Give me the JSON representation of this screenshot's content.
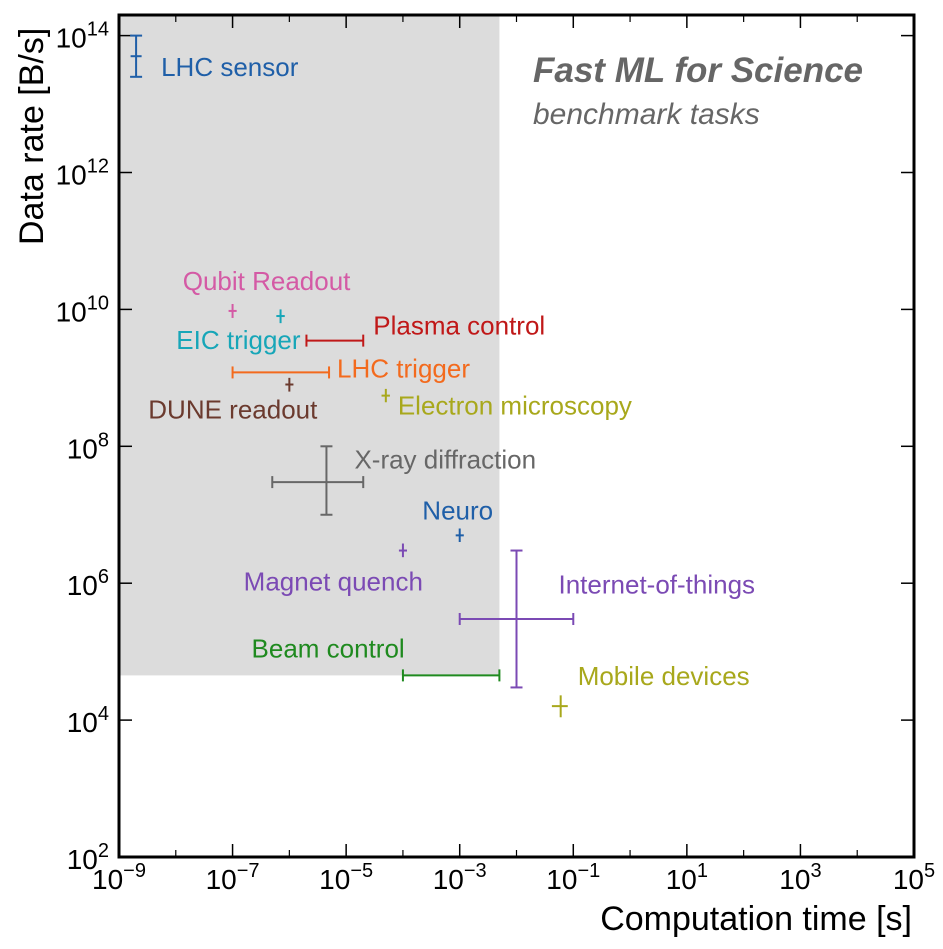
{
  "chart_data": {
    "type": "scatter",
    "title": "Fast ML for Science",
    "subtitle": "benchmark tasks",
    "xlabel": "Computation time [s]",
    "ylabel": "Data rate [B/s]",
    "xscale": "log",
    "yscale": "log",
    "xlim": [
      1e-09,
      100000.0
    ],
    "ylim": [
      100.0,
      200000000000000.0
    ],
    "grid": false,
    "x_ticks": [
      {
        "value": 1e-09,
        "base": "10",
        "exp": "−9"
      },
      {
        "value": 1e-07,
        "base": "10",
        "exp": "−7"
      },
      {
        "value": 1e-05,
        "base": "10",
        "exp": "−5"
      },
      {
        "value": 0.001,
        "base": "10",
        "exp": "−3"
      },
      {
        "value": 0.1,
        "base": "10",
        "exp": "−1"
      },
      {
        "value": 10.0,
        "base": "10",
        "exp": "1"
      },
      {
        "value": 1000.0,
        "base": "10",
        "exp": "3"
      },
      {
        "value": 100000.0,
        "base": "10",
        "exp": "5"
      }
    ],
    "y_ticks": [
      {
        "value": 100.0,
        "base": "10",
        "exp": "2"
      },
      {
        "value": 10000.0,
        "base": "10",
        "exp": "4"
      },
      {
        "value": 1000000.0,
        "base": "10",
        "exp": "6"
      },
      {
        "value": 100000000.0,
        "base": "10",
        "exp": "8"
      },
      {
        "value": 10000000000.0,
        "base": "10",
        "exp": "10"
      },
      {
        "value": 1000000000000.0,
        "base": "10",
        "exp": "12"
      },
      {
        "value": 100000000000000.0,
        "base": "10",
        "exp": "14"
      }
    ],
    "shaded_region": {
      "x": [
        1e-09,
        0.005
      ],
      "y": [
        45000.0,
        200000000000000.0
      ],
      "color": "#dcdcdc"
    },
    "points": [
      {
        "name": "LHC sensor",
        "x": 2e-09,
        "y": 50000000000000.0,
        "xerr": [
          1.6e-09,
          2.5e-09
        ],
        "yerr": [
          25000000000000.0,
          100000000000000.0
        ],
        "color": "#1f5fa8",
        "label_pos": "right"
      },
      {
        "name": "Qubit Readout",
        "x": 1e-07,
        "y": 9500000000.0,
        "xerr": [
          8.5e-08,
          1.18e-07
        ],
        "yerr": [
          7500000000.0,
          12000000000.0
        ],
        "color": "#d45aa5",
        "label_pos": "above"
      },
      {
        "name": "EIC trigger",
        "x": 7e-07,
        "y": 8000000000.0,
        "xerr": [
          5.9e-07,
          8.3e-07
        ],
        "yerr": [
          6300000000.0,
          10000000000.0
        ],
        "color": "#17a6b8",
        "label_pos": "below-left"
      },
      {
        "name": "Plasma control",
        "x": 6e-06,
        "y": 3500000000.0,
        "xerr": [
          2e-06,
          2e-05
        ],
        "yerr": [
          3500000000.0,
          3500000000.0
        ],
        "color": "#c01818",
        "label_pos": "right"
      },
      {
        "name": "LHC trigger",
        "x": 2e-06,
        "y": 1200000000.0,
        "xerr": [
          1e-07,
          5e-06
        ],
        "yerr": [
          1200000000.0,
          1200000000.0
        ],
        "color": "#f36a1d",
        "label_pos": "right"
      },
      {
        "name": "DUNE readout",
        "x": 1e-06,
        "y": 800000000.0,
        "xerr": [
          8.5e-07,
          1.18e-06
        ],
        "yerr": [
          630000000.0,
          1000000000.0
        ],
        "color": "#6b3a2e",
        "label_pos": "below-left"
      },
      {
        "name": "Electron microscopy",
        "x": 5e-05,
        "y": 550000000.0,
        "xerr": [
          4.2e-05,
          5.9e-05
        ],
        "yerr": [
          440000000.0,
          690000000.0
        ],
        "color": "#a8a81c",
        "label_pos": "right"
      },
      {
        "name": "X-ray diffraction",
        "x": 4.5e-06,
        "y": 30000000.0,
        "xerr": [
          5e-07,
          2e-05
        ],
        "yerr": [
          10000000.0,
          100000000.0
        ],
        "color": "#676767",
        "label_pos": "above-right"
      },
      {
        "name": "Neuro",
        "x": 0.001,
        "y": 5000000.0,
        "xerr": [
          0.00085,
          0.00118
        ],
        "yerr": [
          4000000.0,
          6300000.0
        ],
        "color": "#1f5fa8",
        "label_pos": "above"
      },
      {
        "name": "Magnet quench",
        "x": 0.0001,
        "y": 3000000.0,
        "xerr": [
          8.5e-05,
          0.000118
        ],
        "yerr": [
          2400000.0,
          3800000.0
        ],
        "color": "#7b4ab4",
        "label_pos": "below-left"
      },
      {
        "name": "Internet-of-things",
        "x": 0.01,
        "y": 300000.0,
        "xerr": [
          0.001,
          0.1
        ],
        "yerr": [
          30000.0,
          3000000.0
        ],
        "color": "#7b4ab4",
        "label_pos": "above-right"
      },
      {
        "name": "Beam control",
        "x": 0.001,
        "y": 45000.0,
        "xerr": [
          0.0001,
          0.005
        ],
        "yerr": [
          45000.0,
          45000.0
        ],
        "color": "#1f8a1f",
        "label_pos": "above-left"
      },
      {
        "name": "Mobile devices",
        "x": 0.06,
        "y": 16000.0,
        "xerr": [
          0.042,
          0.08
        ],
        "yerr": [
          11000.0,
          23000.0
        ],
        "color": "#a8a81c",
        "label_pos": "above-right"
      }
    ]
  }
}
